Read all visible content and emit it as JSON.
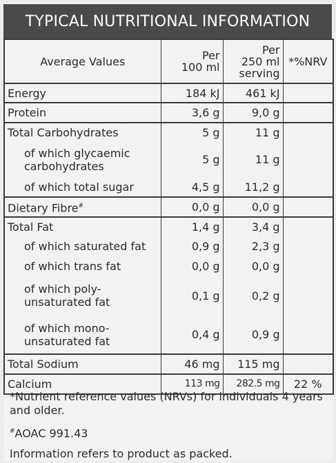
{
  "title": "TYPICAL NUTRITIONAL INFORMATION",
  "header": {
    "col1": "Average Values",
    "col2_l1": "Per",
    "col2_l2": "100 ml",
    "col3_l1": "Per",
    "col3_l2": "250 ml",
    "col3_l3": "serving",
    "col4": "*%NRV"
  },
  "rows": [
    {
      "label": "Energy",
      "per100": "184 kJ",
      "perServing": "461 kJ",
      "nrv": ""
    },
    {
      "label": "Protein",
      "per100": "3,6 g",
      "perServing": "9,0 g",
      "nrv": ""
    },
    {
      "label": "Total Carbohydrates",
      "per100": "5 g",
      "perServing": "11 g",
      "nrv": ""
    },
    {
      "label": "of which glycaemic carbohydrates",
      "per100": "5 g",
      "perServing": "11 g",
      "nrv": ""
    },
    {
      "label": "of which total sugar",
      "per100": "4,5 g",
      "perServing": "11,2 g",
      "nrv": ""
    },
    {
      "label": "Dietary Fibre",
      "sup": "#",
      "per100": "0,0 g",
      "perServing": "0,0 g",
      "nrv": ""
    },
    {
      "label": "Total Fat",
      "per100": "1,4 g",
      "perServing": "3,4 g",
      "nrv": ""
    },
    {
      "label": "of which saturated fat",
      "per100": "0,9 g",
      "perServing": "2,3 g",
      "nrv": ""
    },
    {
      "label": "of which trans fat",
      "per100": "0,0 g",
      "perServing": "0,0 g",
      "nrv": ""
    },
    {
      "label": "of which poly-unsaturated fat",
      "per100": "0,1 g",
      "perServing": "0,2 g",
      "nrv": ""
    },
    {
      "label": "of which mono-unsaturated fat",
      "per100": "0,4 g",
      "perServing": "0,9 g",
      "nrv": ""
    },
    {
      "label": "Total Sodium",
      "per100": "46 mg",
      "perServing": "115 mg",
      "nrv": ""
    },
    {
      "label": "Calcium",
      "per100": "113 mg",
      "perServing": "282.5 mg",
      "nrv": "22 %"
    }
  ],
  "footnotes": {
    "nrv": "*Nutrient reference values (NRVs) for individuals 4 years and older.",
    "aoac_mark": "#",
    "aoac": "AOAC 991.43",
    "packed": "Information refers to product as packed."
  },
  "colors": {
    "title_bg": "#4a4a4a",
    "border": "#3a3a3a",
    "background": "#f2f2f2"
  }
}
